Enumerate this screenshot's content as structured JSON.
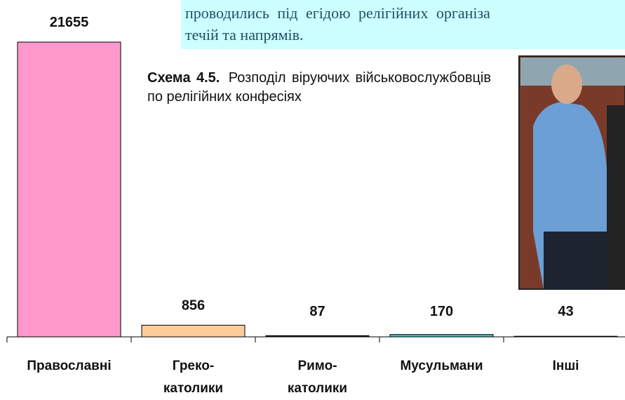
{
  "document": {
    "text_block": {
      "lines": [
        "проводились під егідою релігійних організа",
        "течій та напрямів."
      ]
    },
    "caption": {
      "label": "Схема 4.5.",
      "text": "Розподіл віруючих військовослужбовців по релігійних конфесіях"
    }
  },
  "chart_data": {
    "type": "bar",
    "categories": [
      "Православні",
      "Греко-\nкатолики",
      "Римо-\nкатолики",
      "Мусульмани",
      "Інші"
    ],
    "values": [
      21655,
      856,
      87,
      170,
      43
    ],
    "colors": [
      "#ff99cc",
      "#ffcc99",
      "#222222",
      "#33cccc",
      "#ffffff"
    ]
  }
}
